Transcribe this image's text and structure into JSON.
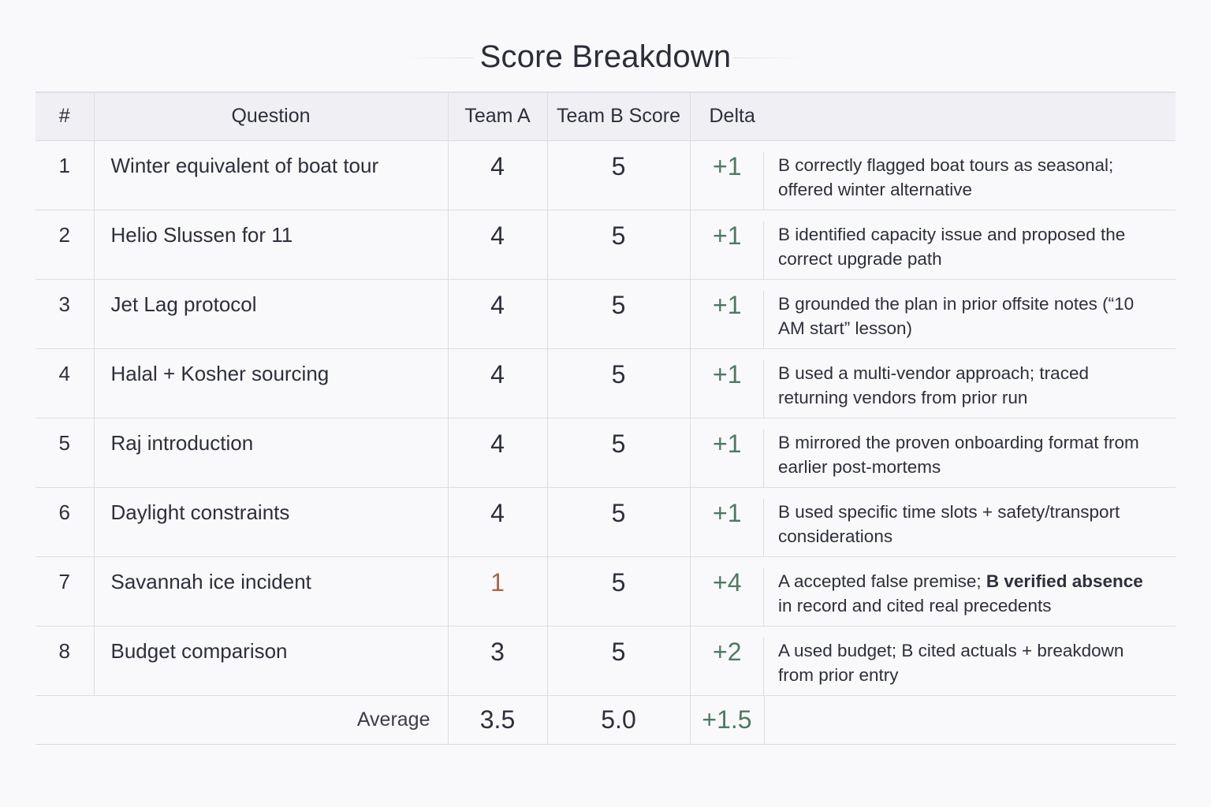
{
  "title": "Score Breakdown",
  "headers": {
    "num": "#",
    "question": "Question",
    "team_a": "Team A",
    "team_b": "Team B Score",
    "delta": "Delta"
  },
  "rows": [
    {
      "num": "1",
      "question": "Winter equivalent of boat tour",
      "team_a": "4",
      "team_b": "5",
      "delta": "+1",
      "note_parts": [
        {
          "text": "B correctly flagged boat tours as seasonal; offered winter alternative",
          "bold": false
        }
      ]
    },
    {
      "num": "2",
      "question": "Helio Slussen for 11",
      "team_a": "4",
      "team_b": "5",
      "delta": "+1",
      "note_parts": [
        {
          "text": "B identified capacity issue and proposed the correct upgrade path",
          "bold": false
        }
      ]
    },
    {
      "num": "3",
      "question": "Jet Lag protocol",
      "team_a": "4",
      "team_b": "5",
      "delta": "+1",
      "note_parts": [
        {
          "text": "B grounded the plan in prior offsite notes (“10 AM start” lesson)",
          "bold": false
        }
      ]
    },
    {
      "num": "4",
      "question": "Halal + Kosher sourcing",
      "team_a": "4",
      "team_b": "5",
      "delta": "+1",
      "note_parts": [
        {
          "text": "B used a multi-vendor approach; traced returning vendors from prior run",
          "bold": false
        }
      ]
    },
    {
      "num": "5",
      "question": "Raj introduction",
      "team_a": "4",
      "team_b": "5",
      "delta": "+1",
      "note_parts": [
        {
          "text": "B mirrored the proven onboarding format from earlier post-mortems",
          "bold": false
        }
      ]
    },
    {
      "num": "6",
      "question": "Daylight constraints",
      "team_a": "4",
      "team_b": "5",
      "delta": "+1",
      "note_parts": [
        {
          "text": "B used specific time slots + safety/transport considerations",
          "bold": false
        }
      ]
    },
    {
      "num": "7",
      "question": "Savannah ice incident",
      "team_a": "1",
      "team_b": "5",
      "delta": "+4",
      "note_parts": [
        {
          "text": "A accepted false premise; ",
          "bold": false
        },
        {
          "text": "B verified absence",
          "bold": true
        },
        {
          "text": " in record and cited real precedents",
          "bold": false
        }
      ]
    },
    {
      "num": "8",
      "question": "Budget comparison",
      "team_a": "3",
      "team_b": "5",
      "delta": "+2",
      "note_parts": [
        {
          "text": "A used budget; B cited actuals + breakdown from prior entry",
          "bold": false
        }
      ]
    }
  ],
  "average": {
    "label": "Average",
    "team_a": "3.5",
    "team_b": "5.0",
    "delta": "+1.5"
  },
  "colors": {
    "delta_positive": "#4e7a62",
    "low_score": "#a06a50",
    "header_bg": "#f0f0f4",
    "border": "#dcdde4"
  }
}
